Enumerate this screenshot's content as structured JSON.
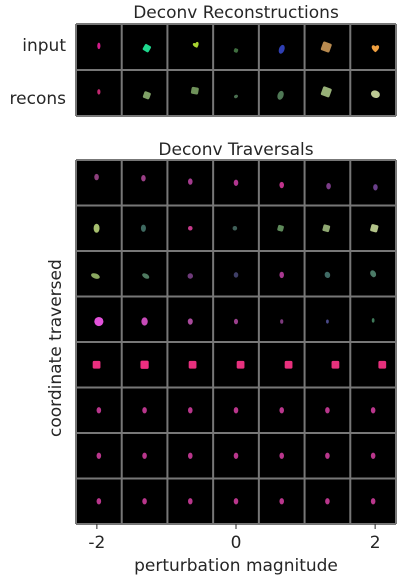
{
  "chart_data": {
    "type": "image-grid",
    "reconstructions": {
      "title": "Deconv Reconstructions",
      "rows": [
        {
          "label": "input",
          "cells": [
            {
              "shape": "ellipse",
              "color": "#d21c8a",
              "dx": 0.0,
              "dy": -0.05,
              "rx": 0.07,
              "ry": 0.14,
              "rot": 0
            },
            {
              "shape": "square",
              "color": "#1ed88e",
              "dx": 0.1,
              "dy": 0.05,
              "rx": 0.15,
              "ry": 0.15,
              "rot": 30
            },
            {
              "shape": "heart",
              "color": "#a9d431",
              "dx": 0.25,
              "dy": -0.1,
              "rx": 0.16,
              "ry": 0.14,
              "rot": -20
            },
            {
              "shape": "square",
              "color": "#3f6e3f",
              "dx": 0.0,
              "dy": 0.15,
              "rx": 0.09,
              "ry": 0.09,
              "rot": 20
            },
            {
              "shape": "ellipse",
              "color": "#2f3fb3",
              "dx": 0.0,
              "dy": 0.1,
              "rx": 0.12,
              "ry": 0.2,
              "rot": 20
            },
            {
              "shape": "square",
              "color": "#b88a4f",
              "dx": -0.05,
              "dy": 0.0,
              "rx": 0.2,
              "ry": 0.2,
              "rot": 20
            },
            {
              "shape": "heart",
              "color": "#f0a040",
              "dx": 0.1,
              "dy": 0.05,
              "rx": 0.2,
              "ry": 0.17,
              "rot": 0
            }
          ]
        },
        {
          "label": "recons",
          "cells": [
            {
              "shape": "ellipse",
              "color": "#c2286f",
              "dx": 0.0,
              "dy": -0.05,
              "rx": 0.07,
              "ry": 0.12,
              "rot": 0
            },
            {
              "shape": "square",
              "color": "#7fa066",
              "dx": 0.1,
              "dy": 0.1,
              "rx": 0.15,
              "ry": 0.15,
              "rot": 20
            },
            {
              "shape": "square",
              "color": "#6f925a",
              "dx": 0.2,
              "dy": -0.1,
              "rx": 0.16,
              "ry": 0.15,
              "rot": 10
            },
            {
              "shape": "ellipse",
              "color": "#4a6f50",
              "dx": 0.0,
              "dy": 0.15,
              "rx": 0.09,
              "ry": 0.07,
              "rot": -30
            },
            {
              "shape": "ellipse",
              "color": "#4f7855",
              "dx": -0.05,
              "dy": 0.1,
              "rx": 0.13,
              "ry": 0.2,
              "rot": 20
            },
            {
              "shape": "square",
              "color": "#97b077",
              "dx": -0.05,
              "dy": -0.05,
              "rx": 0.2,
              "ry": 0.2,
              "rot": 20
            },
            {
              "shape": "ellipse",
              "color": "#bdc993",
              "dx": 0.1,
              "dy": 0.05,
              "rx": 0.2,
              "ry": 0.16,
              "rot": 20
            }
          ]
        }
      ]
    },
    "traversals": {
      "title": "Deconv Traversals",
      "xlabel": "perturbation magnitude",
      "ylabel": "coordinate traversed",
      "xticks": [
        "-2",
        "0",
        "2"
      ],
      "xtick_positions": [
        -2,
        0,
        2
      ],
      "xrange": [
        -2.3,
        2.3
      ],
      "magnitudes": [
        -2.0,
        -1.33,
        -0.67,
        0.0,
        0.67,
        1.33,
        2.0
      ],
      "rows": [
        {
          "cells": [
            {
              "shape": "ellipse",
              "color": "#8c3f7c",
              "dx": -0.1,
              "dy": -0.25,
              "rx": 0.1,
              "ry": 0.14,
              "rot": 0
            },
            {
              "shape": "ellipse",
              "color": "#9a3f86",
              "dx": -0.05,
              "dy": -0.2,
              "rx": 0.1,
              "ry": 0.14,
              "rot": 0
            },
            {
              "shape": "ellipse",
              "color": "#a43b8e",
              "dx": 0.0,
              "dy": -0.05,
              "rx": 0.1,
              "ry": 0.14,
              "rot": 0
            },
            {
              "shape": "ellipse",
              "color": "#b0368f",
              "dx": 0.0,
              "dy": 0.0,
              "rx": 0.1,
              "ry": 0.14,
              "rot": 0
            },
            {
              "shape": "ellipse",
              "color": "#c0338c",
              "dx": 0.0,
              "dy": 0.1,
              "rx": 0.1,
              "ry": 0.14,
              "rot": 0
            },
            {
              "shape": "ellipse",
              "color": "#7c3c88",
              "dx": 0.05,
              "dy": 0.15,
              "rx": 0.1,
              "ry": 0.14,
              "rot": 0
            },
            {
              "shape": "ellipse",
              "color": "#6a3f8a",
              "dx": 0.1,
              "dy": 0.2,
              "rx": 0.1,
              "ry": 0.14,
              "rot": 0
            }
          ]
        },
        {
          "cells": [
            {
              "shape": "ellipse",
              "color": "#a6bf6e",
              "dx": -0.1,
              "dy": 0.0,
              "rx": 0.13,
              "ry": 0.2,
              "rot": 0
            },
            {
              "shape": "ellipse",
              "color": "#3e6960",
              "dx": -0.05,
              "dy": 0.0,
              "rx": 0.11,
              "ry": 0.16,
              "rot": 0
            },
            {
              "shape": "ellipse",
              "color": "#c43a8a",
              "dx": 0.0,
              "dy": 0.0,
              "rx": 0.1,
              "ry": 0.1,
              "rot": 0
            },
            {
              "shape": "ellipse",
              "color": "#3f5f58",
              "dx": -0.05,
              "dy": 0.0,
              "rx": 0.1,
              "ry": 0.1,
              "rot": 0
            },
            {
              "shape": "square",
              "color": "#5e8a5a",
              "dx": -0.05,
              "dy": 0.0,
              "rx": 0.13,
              "ry": 0.13,
              "rot": 15
            },
            {
              "shape": "square",
              "color": "#8fa872",
              "dx": -0.05,
              "dy": 0.0,
              "rx": 0.15,
              "ry": 0.15,
              "rot": 15
            },
            {
              "shape": "square",
              "color": "#b3c389",
              "dx": 0.05,
              "dy": 0.0,
              "rx": 0.16,
              "ry": 0.16,
              "rot": 15
            }
          ]
        },
        {
          "cells": [
            {
              "shape": "ellipse",
              "color": "#8aa860",
              "dx": -0.15,
              "dy": 0.1,
              "rx": 0.2,
              "ry": 0.11,
              "rot": 20
            },
            {
              "shape": "ellipse",
              "color": "#4f7a60",
              "dx": 0.05,
              "dy": 0.1,
              "rx": 0.17,
              "ry": 0.1,
              "rot": 30
            },
            {
              "shape": "ellipse",
              "color": "#6e3a7a",
              "dx": 0.0,
              "dy": 0.1,
              "rx": 0.12,
              "ry": 0.12,
              "rot": 30
            },
            {
              "shape": "ellipse",
              "color": "#3e3e66",
              "dx": 0.0,
              "dy": 0.05,
              "rx": 0.1,
              "ry": 0.12,
              "rot": 0
            },
            {
              "shape": "ellipse",
              "color": "#a83890",
              "dx": 0.0,
              "dy": 0.05,
              "rx": 0.1,
              "ry": 0.14,
              "rot": 0
            },
            {
              "shape": "ellipse",
              "color": "#3f6a64",
              "dx": 0.0,
              "dy": 0.05,
              "rx": 0.12,
              "ry": 0.14,
              "rot": -20
            },
            {
              "shape": "ellipse",
              "color": "#4a7a66",
              "dx": 0.0,
              "dy": 0.0,
              "rx": 0.12,
              "ry": 0.16,
              "rot": -30
            }
          ]
        },
        {
          "cells": [
            {
              "shape": "ellipse",
              "color": "#e252da",
              "dx": 0.0,
              "dy": 0.1,
              "rx": 0.2,
              "ry": 0.2,
              "rot": 0
            },
            {
              "shape": "ellipse",
              "color": "#c74ab8",
              "dx": 0.0,
              "dy": 0.1,
              "rx": 0.14,
              "ry": 0.18,
              "rot": 0
            },
            {
              "shape": "ellipse",
              "color": "#a94a9c",
              "dx": 0.0,
              "dy": 0.1,
              "rx": 0.11,
              "ry": 0.14,
              "rot": 0
            },
            {
              "shape": "ellipse",
              "color": "#9a3f8c",
              "dx": 0.0,
              "dy": 0.1,
              "rx": 0.09,
              "ry": 0.12,
              "rot": 0
            },
            {
              "shape": "ellipse",
              "color": "#7e3a7e",
              "dx": 0.0,
              "dy": 0.1,
              "rx": 0.07,
              "ry": 0.1,
              "rot": 0
            },
            {
              "shape": "ellipse",
              "color": "#4a4a8a",
              "dx": 0.0,
              "dy": 0.1,
              "rx": 0.06,
              "ry": 0.09,
              "rot": 0
            },
            {
              "shape": "ellipse",
              "color": "#3f7a5a",
              "dx": 0.0,
              "dy": 0.05,
              "rx": 0.06,
              "ry": 0.1,
              "rot": 0
            }
          ]
        },
        {
          "cells": [
            {
              "shape": "square",
              "color": "#ea2f7f",
              "dx": -0.1,
              "dy": 0.0,
              "rx": 0.17,
              "ry": 0.17,
              "rot": 0
            },
            {
              "shape": "square",
              "color": "#ee2e80",
              "dx": 0.0,
              "dy": 0.0,
              "rx": 0.18,
              "ry": 0.18,
              "rot": 0
            },
            {
              "shape": "square",
              "color": "#e7307e",
              "dx": 0.1,
              "dy": 0.0,
              "rx": 0.17,
              "ry": 0.17,
              "rot": 0
            },
            {
              "shape": "square",
              "color": "#e6317e",
              "dx": 0.2,
              "dy": 0.0,
              "rx": 0.17,
              "ry": 0.17,
              "rot": 0
            },
            {
              "shape": "square",
              "color": "#e8307d",
              "dx": 0.3,
              "dy": 0.0,
              "rx": 0.17,
              "ry": 0.17,
              "rot": 0
            },
            {
              "shape": "square",
              "color": "#e5317c",
              "dx": 0.35,
              "dy": 0.0,
              "rx": 0.17,
              "ry": 0.17,
              "rot": 0
            },
            {
              "shape": "square",
              "color": "#e6307c",
              "dx": 0.4,
              "dy": 0.0,
              "rx": 0.17,
              "ry": 0.17,
              "rot": 0
            }
          ]
        },
        {
          "cells": [
            {
              "shape": "ellipse",
              "color": "#b9368c",
              "dx": 0.0,
              "dy": 0.0,
              "rx": 0.1,
              "ry": 0.14,
              "rot": 0
            },
            {
              "shape": "ellipse",
              "color": "#b9368c",
              "dx": 0.0,
              "dy": 0.0,
              "rx": 0.1,
              "ry": 0.14,
              "rot": 0
            },
            {
              "shape": "ellipse",
              "color": "#b9368c",
              "dx": 0.0,
              "dy": 0.0,
              "rx": 0.1,
              "ry": 0.14,
              "rot": 0
            },
            {
              "shape": "ellipse",
              "color": "#b9368c",
              "dx": 0.0,
              "dy": 0.0,
              "rx": 0.1,
              "ry": 0.14,
              "rot": 0
            },
            {
              "shape": "ellipse",
              "color": "#b9368c",
              "dx": 0.0,
              "dy": 0.0,
              "rx": 0.1,
              "ry": 0.14,
              "rot": 0
            },
            {
              "shape": "ellipse",
              "color": "#b9368c",
              "dx": 0.0,
              "dy": 0.0,
              "rx": 0.1,
              "ry": 0.14,
              "rot": 0
            },
            {
              "shape": "ellipse",
              "color": "#b9368c",
              "dx": 0.0,
              "dy": 0.0,
              "rx": 0.1,
              "ry": 0.14,
              "rot": 0
            }
          ]
        },
        {
          "cells": [
            {
              "shape": "ellipse",
              "color": "#b9368c",
              "dx": 0.0,
              "dy": 0.0,
              "rx": 0.1,
              "ry": 0.14,
              "rot": 0
            },
            {
              "shape": "ellipse",
              "color": "#b9368c",
              "dx": 0.0,
              "dy": 0.0,
              "rx": 0.1,
              "ry": 0.14,
              "rot": 0
            },
            {
              "shape": "ellipse",
              "color": "#b9368c",
              "dx": 0.0,
              "dy": 0.0,
              "rx": 0.1,
              "ry": 0.14,
              "rot": 0
            },
            {
              "shape": "ellipse",
              "color": "#b9368c",
              "dx": 0.0,
              "dy": 0.0,
              "rx": 0.1,
              "ry": 0.14,
              "rot": 0
            },
            {
              "shape": "ellipse",
              "color": "#b9368c",
              "dx": 0.0,
              "dy": 0.0,
              "rx": 0.1,
              "ry": 0.14,
              "rot": 0
            },
            {
              "shape": "ellipse",
              "color": "#b9368c",
              "dx": 0.0,
              "dy": 0.0,
              "rx": 0.1,
              "ry": 0.14,
              "rot": 0
            },
            {
              "shape": "ellipse",
              "color": "#b9368c",
              "dx": 0.0,
              "dy": 0.0,
              "rx": 0.1,
              "ry": 0.14,
              "rot": 0
            }
          ]
        },
        {
          "cells": [
            {
              "shape": "ellipse",
              "color": "#b9368c",
              "dx": 0.0,
              "dy": 0.0,
              "rx": 0.1,
              "ry": 0.14,
              "rot": 0
            },
            {
              "shape": "ellipse",
              "color": "#b9368c",
              "dx": 0.0,
              "dy": 0.0,
              "rx": 0.1,
              "ry": 0.14,
              "rot": 0
            },
            {
              "shape": "ellipse",
              "color": "#b9368c",
              "dx": 0.0,
              "dy": 0.0,
              "rx": 0.1,
              "ry": 0.14,
              "rot": 0
            },
            {
              "shape": "ellipse",
              "color": "#b9368c",
              "dx": 0.0,
              "dy": 0.0,
              "rx": 0.1,
              "ry": 0.14,
              "rot": 0
            },
            {
              "shape": "ellipse",
              "color": "#b9368c",
              "dx": 0.0,
              "dy": 0.0,
              "rx": 0.1,
              "ry": 0.14,
              "rot": 0
            },
            {
              "shape": "ellipse",
              "color": "#b9368c",
              "dx": 0.0,
              "dy": 0.0,
              "rx": 0.1,
              "ry": 0.14,
              "rot": 0
            },
            {
              "shape": "ellipse",
              "color": "#b9368c",
              "dx": 0.0,
              "dy": 0.0,
              "rx": 0.1,
              "ry": 0.14,
              "rot": 0
            }
          ]
        }
      ]
    }
  },
  "colors": {
    "cell_background": "#000000",
    "grid_line": "#777777",
    "text": "#262626"
  }
}
